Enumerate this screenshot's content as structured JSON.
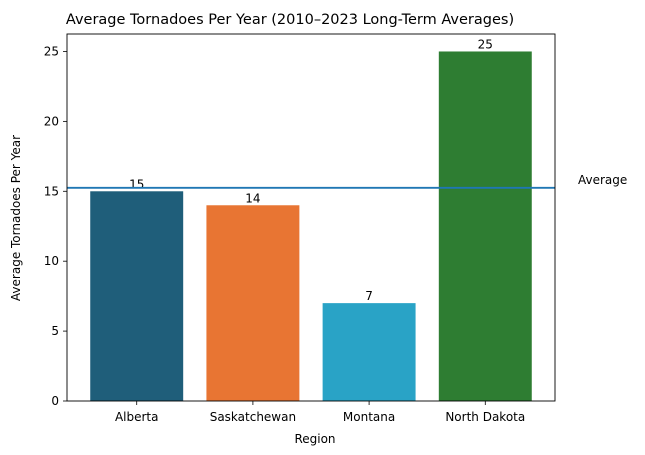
{
  "chart_data": {
    "type": "bar",
    "title": "Average Tornadoes Per Year (2010–2023 Long-Term Averages)",
    "xlabel": "Region",
    "ylabel": "Average Tornadoes Per Year",
    "categories": [
      "Alberta",
      "Saskatchewan",
      "Montana",
      "North Dakota"
    ],
    "values": [
      15,
      14,
      7,
      25
    ],
    "data_labels": [
      "15",
      "14",
      "7",
      "25"
    ],
    "colors": [
      "#1f5e7a",
      "#e87533",
      "#29a3c6",
      "#2e7d32"
    ],
    "ylim": [
      0,
      26.25
    ],
    "yticks": [
      0,
      5,
      10,
      15,
      20,
      25
    ],
    "grid": false,
    "reference_line": {
      "label": "Average",
      "value": 15.25,
      "color": "#1f77b4"
    }
  }
}
